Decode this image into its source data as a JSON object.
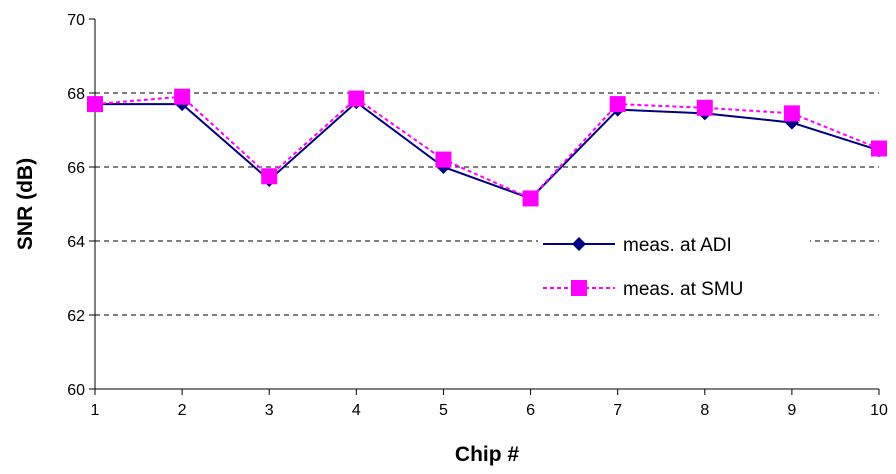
{
  "chart_data": {
    "type": "line",
    "title": "",
    "xlabel": "Chip #",
    "ylabel": "SNR (dB)",
    "x": [
      1,
      2,
      3,
      4,
      5,
      6,
      7,
      8,
      9,
      10
    ],
    "xlim": [
      1,
      10
    ],
    "ylim": [
      60,
      70
    ],
    "yticks": [
      60,
      62,
      64,
      66,
      68,
      70
    ],
    "grid": "horizontal-dashed",
    "legend_position": "center-right",
    "series": [
      {
        "name": "meas. at ADI",
        "values": [
          67.7,
          67.7,
          65.65,
          67.75,
          66.0,
          65.15,
          67.55,
          67.45,
          67.2,
          66.45
        ],
        "color": "#000080",
        "line_style": "solid",
        "marker": "diamond"
      },
      {
        "name": "meas. at SMU",
        "values": [
          67.7,
          67.9,
          65.75,
          67.85,
          66.2,
          65.15,
          67.7,
          67.6,
          67.45,
          66.5
        ],
        "color": "#FF00FF",
        "line_style": "dotted",
        "marker": "square"
      }
    ]
  }
}
